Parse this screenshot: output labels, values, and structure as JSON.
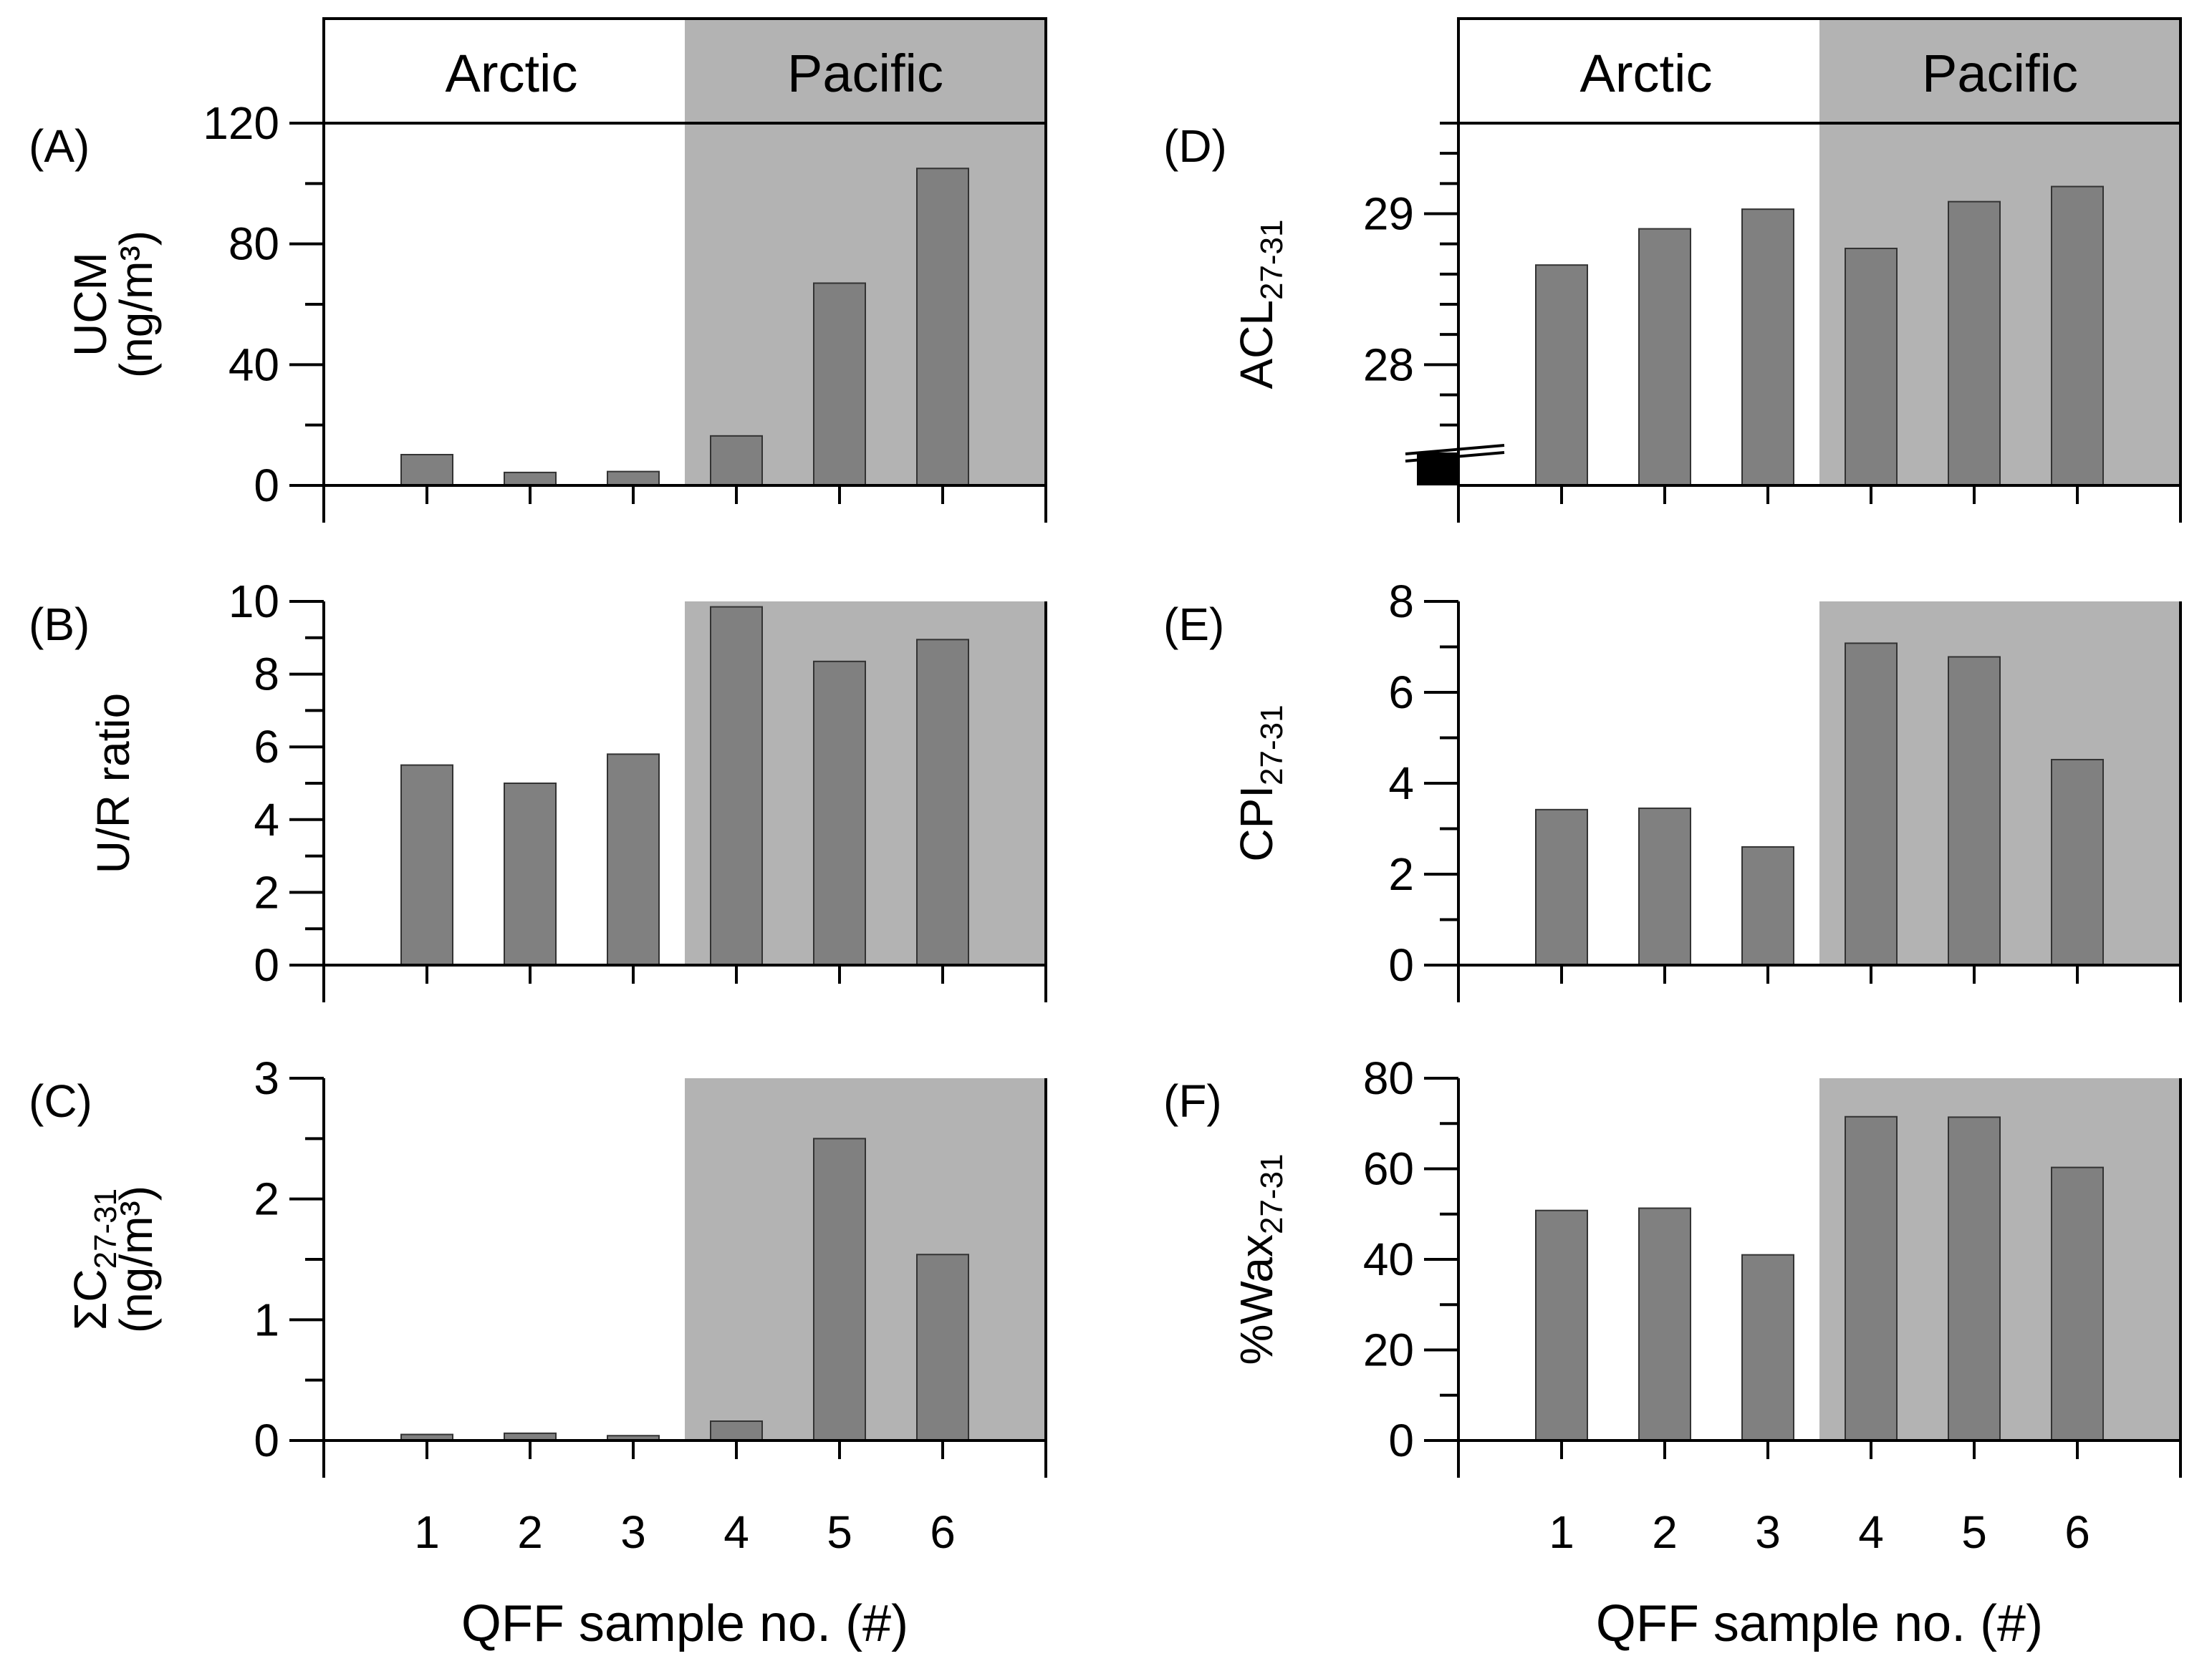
{
  "chart_data": [
    {
      "type": "bar",
      "panel": "(A)",
      "ylabel": "UCM",
      "ylabel2": "(ng/m³)",
      "categories": [
        "1",
        "2",
        "3",
        "4",
        "5",
        "6"
      ],
      "values": [
        10.2,
        4.3,
        4.6,
        16.4,
        67.0,
        105.0
      ],
      "ylim": [
        0,
        120
      ],
      "yticks": [
        "0",
        "40",
        "80",
        "120"
      ],
      "minor_step": 20,
      "regions": [
        "Arctic",
        "Pacific"
      ],
      "shade_from_category": 4
    },
    {
      "type": "bar",
      "panel": "(B)",
      "ylabel": "U/R ratio",
      "categories": [
        "1",
        "2",
        "3",
        "4",
        "5",
        "6"
      ],
      "values": [
        5.5,
        5.0,
        5.8,
        9.85,
        8.35,
        8.95
      ],
      "ylim": [
        0,
        10
      ],
      "yticks": [
        "0",
        "2",
        "4",
        "6",
        "8",
        "10"
      ],
      "minor_step": 1,
      "shade_from_category": 4
    },
    {
      "type": "bar",
      "panel": "(C)",
      "ylabel_main": "ΣC",
      "ylabel_sub": "27-31",
      "ylabel2": "(ng/m³)",
      "categories": [
        "1",
        "2",
        "3",
        "4",
        "5",
        "6"
      ],
      "values": [
        0.05,
        0.06,
        0.04,
        0.16,
        2.5,
        1.54
      ],
      "ylim": [
        0,
        3
      ],
      "yticks": [
        "0",
        "1",
        "2",
        "3"
      ],
      "minor_step": 0.5,
      "shade_from_category": 4,
      "xlabel": "QFF sample no. (#)"
    },
    {
      "type": "bar",
      "panel": "(D)",
      "ylabel_main": "ACL",
      "ylabel_sub": "27-31",
      "categories": [
        "1",
        "2",
        "3",
        "4",
        "5",
        "6"
      ],
      "values": [
        28.66,
        28.9,
        29.03,
        28.77,
        29.08,
        29.18
      ],
      "ylim": [
        27.2,
        29.6
      ],
      "yticks": [
        "28",
        "29"
      ],
      "minor_step": 0.2,
      "axis_break": true,
      "regions": [
        "Arctic",
        "Pacific"
      ],
      "shade_from_category": 4
    },
    {
      "type": "bar",
      "panel": "(E)",
      "ylabel_main": "CPI",
      "ylabel_sub": "27-31",
      "categories": [
        "1",
        "2",
        "3",
        "4",
        "5",
        "6"
      ],
      "values": [
        3.42,
        3.45,
        2.6,
        7.08,
        6.78,
        4.52
      ],
      "ylim": [
        0,
        8
      ],
      "yticks": [
        "0",
        "2",
        "4",
        "6",
        "8"
      ],
      "minor_step": 1,
      "shade_from_category": 4
    },
    {
      "type": "bar",
      "panel": "(F)",
      "ylabel_main": "%Wax",
      "ylabel_sub": "27-31",
      "categories": [
        "1",
        "2",
        "3",
        "4",
        "5",
        "6"
      ],
      "values": [
        50.8,
        51.3,
        41.0,
        71.5,
        71.4,
        60.3
      ],
      "ylim": [
        0,
        80
      ],
      "yticks": [
        "0",
        "20",
        "40",
        "60",
        "80"
      ],
      "minor_step": 10,
      "shade_from_category": 4,
      "xlabel": "QFF sample no. (#)"
    }
  ],
  "colors": {
    "bar": "#808080",
    "shade": "#b3b3b3",
    "axis": "#000000",
    "break_block": "#000000"
  }
}
